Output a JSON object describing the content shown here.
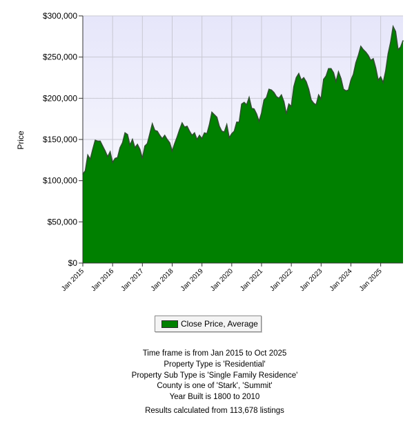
{
  "chart_data": {
    "type": "area",
    "ylabel": "Price",
    "ylim": [
      0,
      300000
    ],
    "yticks": [
      0,
      50000,
      100000,
      150000,
      200000,
      250000,
      300000
    ],
    "ytick_labels": [
      "$0",
      "$50,000",
      "$100,000",
      "$150,000",
      "$200,000",
      "$250,000",
      "$300,000"
    ],
    "xtick_labels": [
      "Jan 2015",
      "Jan 2016",
      "Jan 2017",
      "Jan 2018",
      "Jan 2019",
      "Jan 2020",
      "Jan 2021",
      "Jan 2022",
      "Jan 2023",
      "Jan 2024",
      "Jan 2025"
    ],
    "x_start": "2015-01",
    "x_end": "2025-10",
    "grid": true,
    "colors": {
      "fill": "#008000",
      "line": "#2f4f2f",
      "plot_bg_top": "#e6e6fa",
      "plot_bg_bottom": "#ffffff",
      "grid": "#c8c8d2"
    },
    "legend_position": "bottom",
    "series": [
      {
        "name": "Close Price, Average",
        "values": [
          108000,
          112000,
          131000,
          126000,
          138000,
          149000,
          148000,
          148000,
          142000,
          136000,
          129000,
          135000,
          122000,
          127000,
          128000,
          140000,
          146000,
          158000,
          156000,
          143000,
          150000,
          140000,
          144000,
          138000,
          127000,
          142000,
          145000,
          157000,
          169000,
          161000,
          160000,
          155000,
          151000,
          155000,
          150000,
          146000,
          136000,
          145000,
          153000,
          162000,
          170000,
          165000,
          166000,
          160000,
          155000,
          158000,
          150000,
          155000,
          151000,
          158000,
          157000,
          168000,
          183000,
          180000,
          177000,
          166000,
          160000,
          159000,
          168000,
          152000,
          157000,
          160000,
          171000,
          171000,
          193000,
          195000,
          192000,
          201000,
          188000,
          187000,
          181000,
          172000,
          182000,
          198000,
          201000,
          211000,
          210000,
          207000,
          202000,
          200000,
          204000,
          196000,
          181000,
          193000,
          190000,
          214000,
          225000,
          230000,
          222000,
          225000,
          220000,
          211000,
          198000,
          194000,
          192000,
          204000,
          199000,
          223000,
          227000,
          236000,
          236000,
          231000,
          220000,
          232000,
          224000,
          211000,
          209000,
          210000,
          222000,
          229000,
          243000,
          252000,
          263000,
          259000,
          256000,
          252000,
          246000,
          248000,
          237000,
          222000,
          226000,
          219000,
          233000,
          254000,
          268000,
          287000,
          281000,
          259000,
          262000,
          270000
        ]
      }
    ]
  },
  "legend": {
    "label": "Close Price, Average"
  },
  "footnotes": {
    "time_frame": "Time frame is from Jan 2015 to Oct 2025",
    "property_type": "Property Type is 'Residential'",
    "property_sub_type": "Property Sub Type is 'Single Family Residence'",
    "county": "County is one of 'Stark', 'Summit'",
    "year_built": "Year Built is 1800 to 2010",
    "results": "Results calculated from 113,678 listings"
  }
}
